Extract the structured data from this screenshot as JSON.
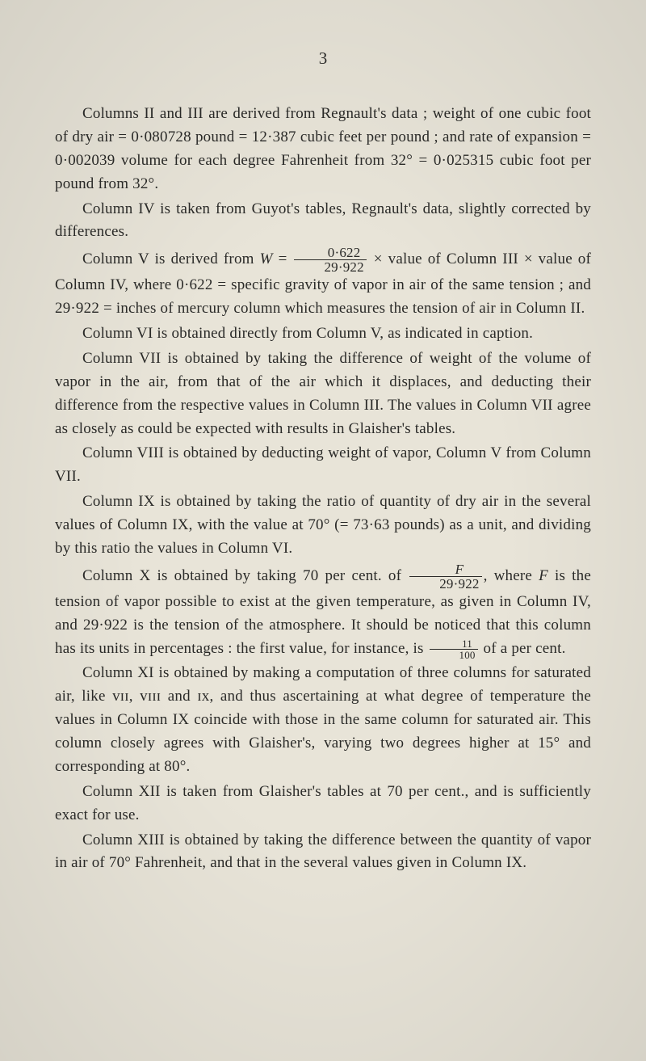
{
  "page": {
    "number": "3",
    "background_color": "#e8e4d8",
    "text_color": "#2a2a28",
    "font_family": "Times New Roman",
    "body_fontsize": 19,
    "pagenum_fontsize": 21,
    "line_height": 1.52,
    "text_indent": 34
  },
  "paragraphs": {
    "p1_a": "Columns II and III are derived from Regnault's data ; weight of one cubic foot of dry air = 0·080728 pound = 12·387 cubic feet per pound ; and rate of expansion = 0·002039 volume for each degree Fahrenheit from 32° = 0·025315 cubic foot per pound from 32°.",
    "p2": "Column IV is taken from Guyot's tables, Regnault's data, slightly corrected by differences.",
    "p3_a": "Column V is derived from ",
    "p3_W": "W",
    "p3_eq": " = ",
    "p3_num": "0·622",
    "p3_den": "29·922",
    "p3_b": " × value of Column III × value of Column IV, where 0·622 = specific gravity of vapor in air of the same tension ; and 29·922 = inches of mercury column which measures the tension of air in Column II.",
    "p4": "Column VI is obtained directly from Column V, as indicated in caption.",
    "p5": "Column VII is obtained by taking the difference of weight of the volume of vapor in the air, from that of the air which it displaces, and deducting their difference from the respective values in Column III.   The values in Column VII agree as closely as could be expected with results in Glaisher's tables.",
    "p6": "Column VIII is obtained by deducting weight of vapor, Column V from Column VII.",
    "p7": "Column IX is obtained by taking the ratio of quantity of dry air in the several values of Column IX, with the value at 70° (= 73·63 pounds) as a unit, and dividing by this ratio the values in Column VI.",
    "p8_a": "Column X is obtained by taking 70 per cent. of ",
    "p8_num": "F",
    "p8_den": "29·922",
    "p8_b": ", where ",
    "p8_F": "F",
    "p8_c": " is the tension of vapor possible to exist at the given temperature, as given in Column IV, and 29·922 is the tension of the atmosphere. It should be noticed that this column has its units in percentages : the first value, for instance, is ",
    "p8_frac2_num": "11",
    "p8_frac2_den": "100",
    "p8_d": " of a per cent.",
    "p9": "Column XI is obtained by making a computation of three columns for saturated air, like ᴠɪɪ, ᴠɪɪɪ and ɪx, and thus ascertaining at what degree of temperature the values in Column IX coincide with those in the same column for saturated air.   This column closely agrees with Glaisher's, varying two degrees higher at 15° and corresponding at 80°.",
    "p10": "Column XII is taken from Glaisher's tables at 70 per cent., and is sufficiently exact for use.",
    "p11": "Column XIII is obtained by taking the difference between the quantity of vapor in air of 70° Fahrenheit, and that in the several values given in Column IX."
  }
}
